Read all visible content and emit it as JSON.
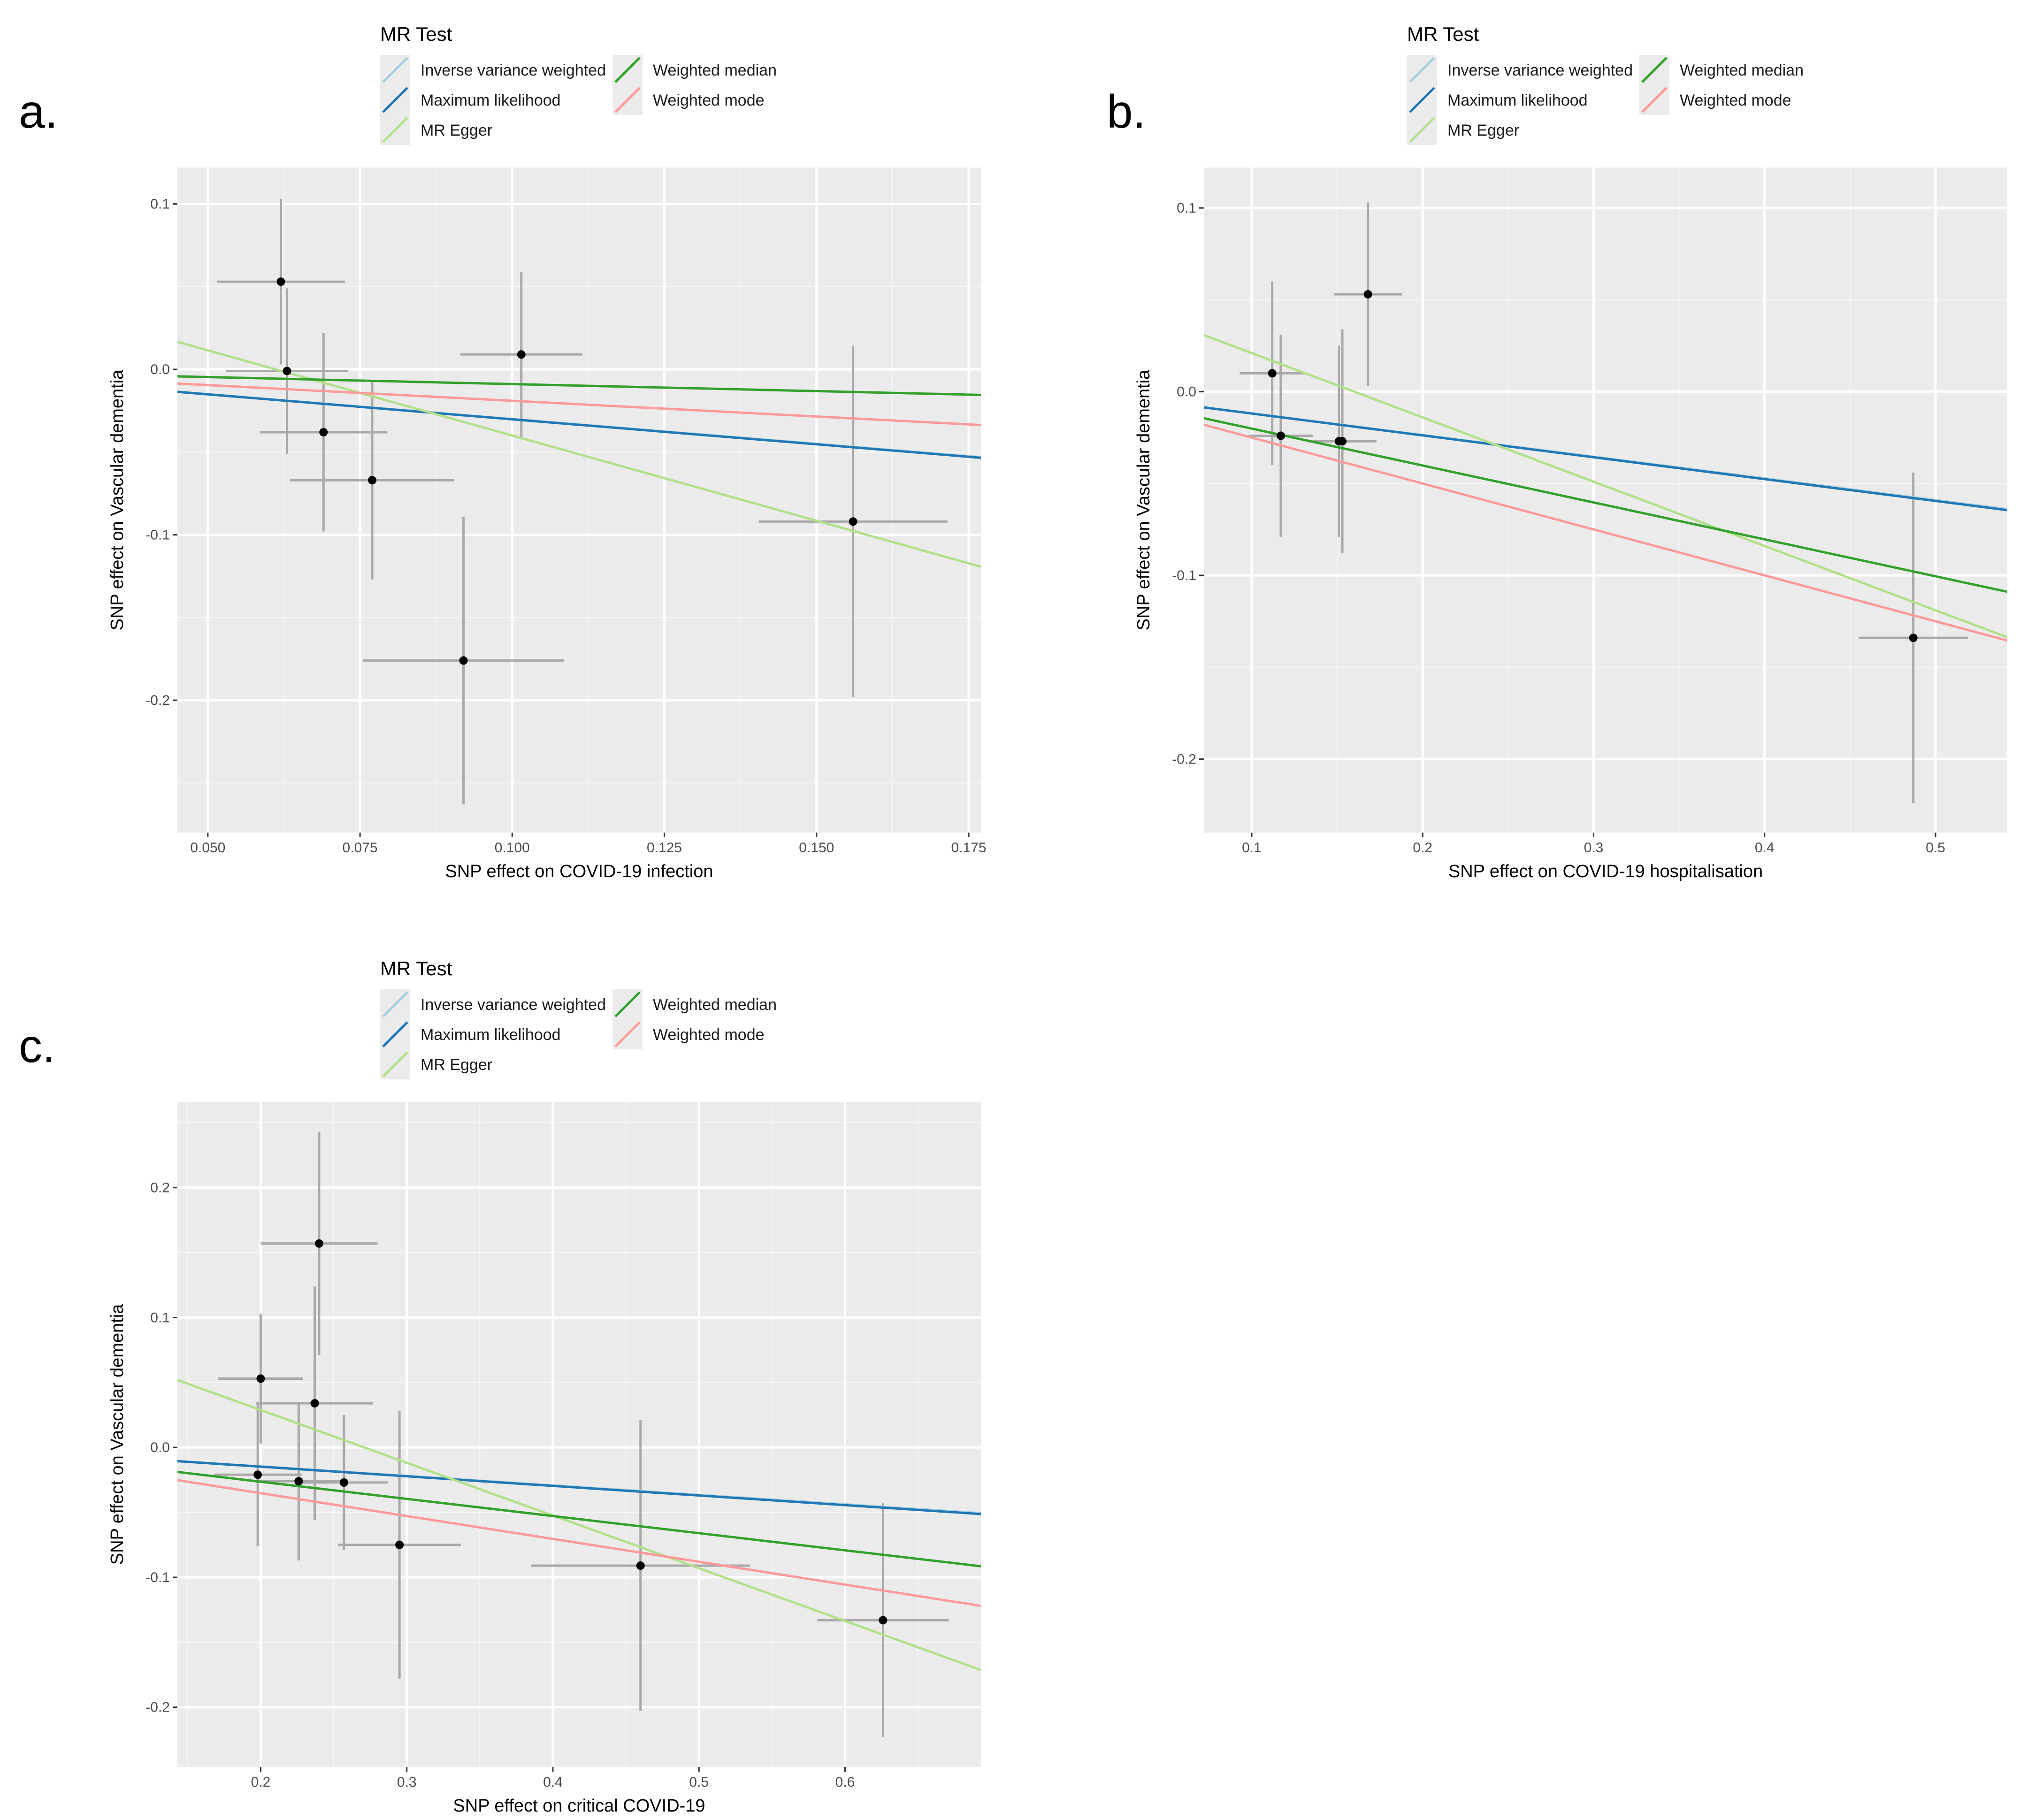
{
  "figure": {
    "background": "#ffffff",
    "panel_background": "#ebebeb",
    "grid_color": "#ffffff"
  },
  "legend": {
    "title": "MR Test",
    "entries": [
      {
        "name": "Inverse variance weighted",
        "color": "#a6cee3"
      },
      {
        "name": "Maximum likelihood",
        "color": "#1f78b4"
      },
      {
        "name": "MR Egger",
        "color": "#b2df8a"
      },
      {
        "name": "Weighted median",
        "color": "#33a02c"
      },
      {
        "name": "Weighted mode",
        "color": "#fb9a99"
      }
    ]
  },
  "chart_data": [
    {
      "panel": "a.",
      "type": "scatter",
      "title": "",
      "xlabel": "SNP effect on COVID-19 infection",
      "ylabel": "SNP effect on Vascular dementia",
      "xlim": [
        0.045,
        0.177
      ],
      "ylim": [
        -0.28,
        0.122
      ],
      "xticks": [
        0.05,
        0.075,
        0.1,
        0.125,
        0.15,
        0.175
      ],
      "xtick_labels": [
        "0.050",
        "0.075",
        "0.100",
        "0.125",
        "0.150",
        "0.175"
      ],
      "yticks": [
        0.1,
        0.0,
        -0.1,
        -0.2
      ],
      "ytick_labels": [
        "0.1",
        "0.0",
        "-0.1",
        "-0.2"
      ],
      "points": [
        {
          "x": 0.062,
          "y": 0.053,
          "xerr": 0.0105,
          "yerr": 0.05
        },
        {
          "x": 0.063,
          "y": -0.001,
          "xerr": 0.01,
          "yerr": 0.05
        },
        {
          "x": 0.069,
          "y": -0.038,
          "xerr": 0.0105,
          "yerr": 0.06
        },
        {
          "x": 0.077,
          "y": -0.067,
          "xerr": 0.0135,
          "yerr": 0.06
        },
        {
          "x": 0.1015,
          "y": 0.009,
          "xerr": 0.01,
          "yerr": 0.05
        },
        {
          "x": 0.092,
          "y": -0.176,
          "xerr": 0.0165,
          "yerr": 0.087
        },
        {
          "x": 0.156,
          "y": -0.092,
          "xerr": 0.0155,
          "yerr": 0.106
        }
      ],
      "lines": [
        {
          "method": "Inverse variance weighted",
          "intercept": 0,
          "slope": -0.3
        },
        {
          "method": "Maximum likelihood",
          "intercept": 0,
          "slope": -0.302
        },
        {
          "method": "MR Egger",
          "intercept": 0.063,
          "slope": -1.03
        },
        {
          "method": "Weighted median",
          "intercept": -0.0004,
          "slope": -0.085
        },
        {
          "method": "Weighted mode",
          "intercept": 0,
          "slope": -0.19
        }
      ]
    },
    {
      "panel": "b.",
      "type": "scatter",
      "title": "",
      "xlabel": "SNP effect on COVID-19 hospitalisation",
      "ylabel": "SNP effect on Vascular dementia",
      "xlim": [
        0.072,
        0.542
      ],
      "ylim": [
        -0.24,
        0.122
      ],
      "xticks": [
        0.1,
        0.2,
        0.3,
        0.4,
        0.5
      ],
      "xtick_labels": [
        "0.1",
        "0.2",
        "0.3",
        "0.4",
        "0.5"
      ],
      "yticks": [
        0.1,
        0.0,
        -0.1,
        -0.2
      ],
      "ytick_labels": [
        "0.1",
        "0.0",
        "-0.1",
        "-0.2"
      ],
      "points": [
        {
          "x": 0.112,
          "y": 0.01,
          "xerr": 0.019,
          "yerr": 0.05
        },
        {
          "x": 0.117,
          "y": -0.024,
          "xerr": 0.019,
          "yerr": 0.055
        },
        {
          "x": 0.151,
          "y": -0.027,
          "xerr": 0.017,
          "yerr": 0.052
        },
        {
          "x": 0.153,
          "y": -0.027,
          "xerr": 0.02,
          "yerr": 0.061
        },
        {
          "x": 0.168,
          "y": 0.053,
          "xerr": 0.02,
          "yerr": 0.05
        },
        {
          "x": 0.487,
          "y": -0.134,
          "xerr": 0.032,
          "yerr": 0.09
        }
      ],
      "lines": [
        {
          "method": "Inverse variance weighted",
          "intercept": 0,
          "slope": -0.118
        },
        {
          "method": "Maximum likelihood",
          "intercept": 0,
          "slope": -0.119
        },
        {
          "method": "MR Egger",
          "intercept": 0.056,
          "slope": -0.35
        },
        {
          "method": "Weighted median",
          "intercept": 0,
          "slope": -0.201
        },
        {
          "method": "Weighted mode",
          "intercept": 0,
          "slope": -0.25
        }
      ]
    },
    {
      "panel": "c.",
      "type": "scatter",
      "title": "",
      "xlabel": "SNP effect on critical COVID-19",
      "ylabel": "SNP effect on Vascular dementia",
      "xlim": [
        0.143,
        0.693
      ],
      "ylim": [
        -0.246,
        0.266
      ],
      "xticks": [
        0.2,
        0.3,
        0.4,
        0.5,
        0.6
      ],
      "xtick_labels": [
        "0.2",
        "0.3",
        "0.4",
        "0.5",
        "0.6"
      ],
      "yticks": [
        0.2,
        0.1,
        0.0,
        -0.1,
        -0.2
      ],
      "ytick_labels": [
        "0.2",
        "0.1",
        "0.0",
        "-0.1",
        "-0.2"
      ],
      "points": [
        {
          "x": 0.2,
          "y": 0.053,
          "xerr": 0.029,
          "yerr": 0.05
        },
        {
          "x": 0.198,
          "y": -0.021,
          "xerr": 0.03,
          "yerr": 0.055
        },
        {
          "x": 0.226,
          "y": -0.026,
          "xerr": 0.03,
          "yerr": 0.061
        },
        {
          "x": 0.237,
          "y": 0.034,
          "xerr": 0.04,
          "yerr": 0.09
        },
        {
          "x": 0.24,
          "y": 0.157,
          "xerr": 0.04,
          "yerr": 0.086
        },
        {
          "x": 0.257,
          "y": -0.027,
          "xerr": 0.03,
          "yerr": 0.052
        },
        {
          "x": 0.295,
          "y": -0.075,
          "xerr": 0.042,
          "yerr": 0.103
        },
        {
          "x": 0.46,
          "y": -0.091,
          "xerr": 0.075,
          "yerr": 0.112
        },
        {
          "x": 0.626,
          "y": -0.133,
          "xerr": 0.045,
          "yerr": 0.09
        }
      ],
      "lines": [
        {
          "method": "Inverse variance weighted",
          "intercept": 0,
          "slope": -0.073
        },
        {
          "method": "Maximum likelihood",
          "intercept": 0,
          "slope": -0.074
        },
        {
          "method": "MR Egger",
          "intercept": 0.11,
          "slope": -0.406
        },
        {
          "method": "Weighted median",
          "intercept": 0,
          "slope": -0.132
        },
        {
          "method": "Weighted mode",
          "intercept": 0,
          "slope": -0.176
        }
      ]
    }
  ]
}
